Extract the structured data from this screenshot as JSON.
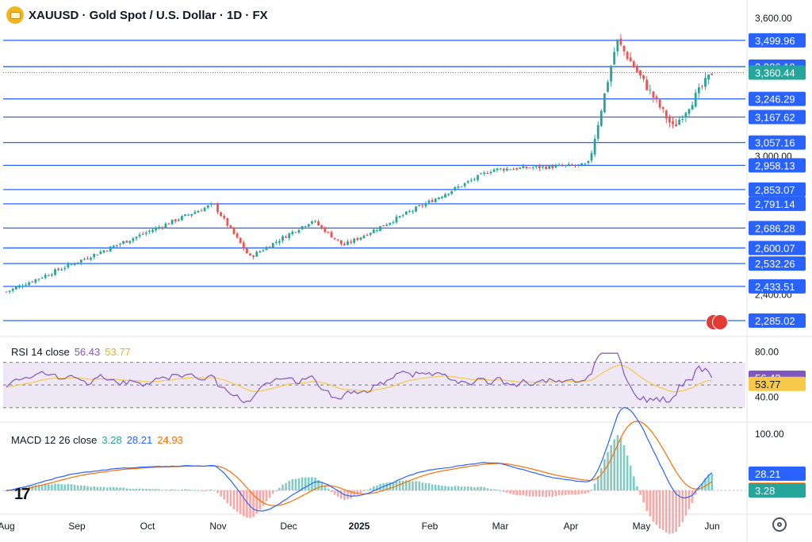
{
  "header": {
    "title": "XAUUSD · Gold Spot / U.S. Dollar · 1D · FX"
  },
  "colors": {
    "up": "#26a69a",
    "down": "#ef5350",
    "hline": "#2962ff",
    "rsi_line": "#7e57c2",
    "rsi_ma": "#f7c948",
    "macd_line": "#2962ff",
    "signal_line": "#ff6d00",
    "last_price": "#26a69a",
    "rsi_band": "#ede7f6"
  },
  "price_axis": {
    "ticks": [
      "3,600.00",
      "3,000.00",
      "2,400.00"
    ],
    "tick_values": [
      3600,
      3000,
      2400
    ]
  },
  "horizontal_levels": [
    {
      "value": 3499.96,
      "label": "3,499.96"
    },
    {
      "value": 3386.19,
      "label": "3,386.19"
    },
    {
      "value": 3246.29,
      "label": "3,246.29"
    },
    {
      "value": 3167.62,
      "label": "3,167.62"
    },
    {
      "value": 3057.16,
      "label": "3,057.16"
    },
    {
      "value": 2958.13,
      "label": "2,958.13"
    },
    {
      "value": 2853.07,
      "label": "2,853.07"
    },
    {
      "value": 2791.14,
      "label": "2,791.14"
    },
    {
      "value": 2686.28,
      "label": "2,686.28"
    },
    {
      "value": 2600.07,
      "label": "2,600.07"
    },
    {
      "value": 2532.26,
      "label": "2,532.26"
    },
    {
      "value": 2433.51,
      "label": "2,433.51"
    },
    {
      "value": 2285.02,
      "label": "2,285.02"
    }
  ],
  "last_price": {
    "value": 3360.44,
    "label": "3,360.44"
  },
  "x_axis": {
    "labels": [
      "Aug",
      "Sep",
      "Oct",
      "Nov",
      "Dec",
      "2025",
      "Feb",
      "Mar",
      "Apr",
      "May",
      "Jun"
    ],
    "bold": [
      "2025"
    ]
  },
  "rsi": {
    "title": "RSI 14 close",
    "rsi_value": "56.43",
    "ma_value": "53.77",
    "axis_ticks": [
      "80.00",
      "60.00",
      "40.00"
    ],
    "band": [
      30,
      70
    ]
  },
  "macd": {
    "title": "MACD 12 26 close",
    "hist_value": "3.28",
    "macd_value": "28.21",
    "signal_value": "24.93",
    "axis_ticks": [
      "100.00"
    ]
  },
  "chart_data": {
    "type": "candlestick",
    "symbol": "XAUUSD",
    "interval": "1D",
    "ylim": [
      2230,
      3620
    ],
    "months": [
      {
        "label": "Aug",
        "close_start": 2410,
        "close_end": 2505
      },
      {
        "label": "Sep",
        "close_start": 2505,
        "close_end": 2660
      },
      {
        "label": "Oct",
        "close_start": 2660,
        "close_end": 2745
      },
      {
        "label": "Nov",
        "close_start": 2745,
        "close_end": 2640
      },
      {
        "label": "Dec",
        "close_start": 2640,
        "close_end": 2625
      },
      {
        "label": "2025",
        "close_start": 2625,
        "close_end": 2800
      },
      {
        "label": "Feb",
        "close_start": 2800,
        "close_end": 2860
      },
      {
        "label": "Mar",
        "close_start": 2860,
        "close_end": 3125
      },
      {
        "label": "Apr",
        "close_start": 3125,
        "close_end": 3290
      },
      {
        "label": "May",
        "close_start": 3290,
        "close_end": 3300
      },
      {
        "label": "Jun",
        "close_start": 3300,
        "close_end": 3360
      }
    ],
    "key_points": [
      {
        "x": "Aug",
        "close": 2410
      },
      {
        "x": "Nov",
        "close": 2790
      },
      {
        "x": "Nov",
        "close": 2560
      },
      {
        "x": "Dec",
        "close": 2720
      },
      {
        "x": "2025",
        "close": 2610
      },
      {
        "x": "Feb",
        "close": 2940
      },
      {
        "x": "Apr",
        "close": 2960
      },
      {
        "x": "Apr",
        "close": 3500
      },
      {
        "x": "May",
        "close": 3120
      },
      {
        "x": "Jun",
        "close": 3360.44
      }
    ]
  }
}
